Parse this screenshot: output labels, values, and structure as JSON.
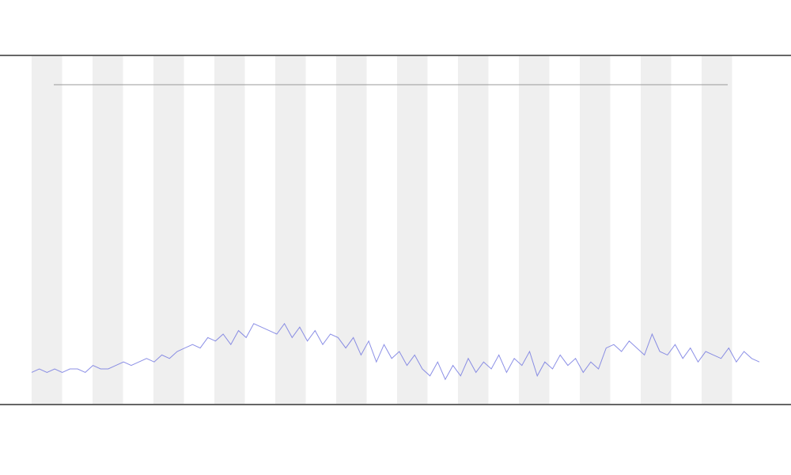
{
  "chart_data": {
    "type": "line",
    "color": "#6f74e0",
    "values": [
      9,
      10,
      9,
      10,
      9,
      10,
      10,
      9,
      11,
      10,
      10,
      11,
      12,
      11,
      12,
      13,
      12,
      14,
      13,
      15,
      16,
      17,
      16,
      19,
      18,
      20,
      17,
      21,
      19,
      23,
      22,
      21,
      20,
      23,
      19,
      22,
      18,
      21,
      17,
      20,
      19,
      16,
      19,
      14,
      18,
      12,
      17,
      13,
      15,
      11,
      14,
      10,
      8,
      12,
      7,
      11,
      8,
      13,
      9,
      12,
      10,
      14,
      9,
      13,
      11,
      15,
      8,
      12,
      10,
      14,
      11,
      13,
      9,
      12,
      10,
      16,
      17,
      15,
      18,
      16,
      14,
      20,
      15,
      14,
      17,
      13,
      16,
      12,
      15,
      14,
      13,
      16,
      12,
      15,
      13,
      12
    ],
    "ylim": [
      0,
      100
    ]
  }
}
